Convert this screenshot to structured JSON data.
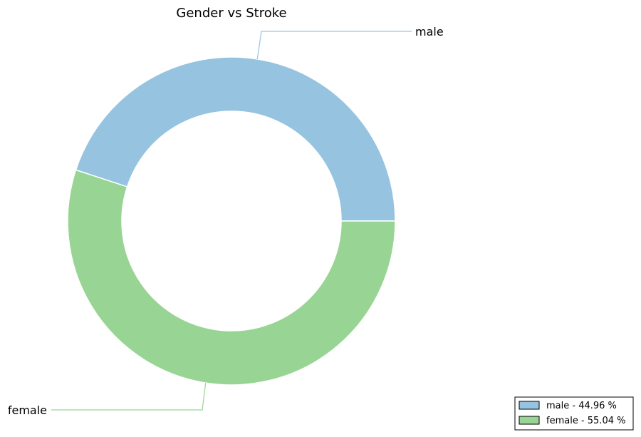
{
  "chart_data": {
    "type": "pie",
    "donut": true,
    "title": "Gender vs Stroke",
    "slices": [
      {
        "label": "male",
        "value": 44.96,
        "color": "#96c4e0"
      },
      {
        "label": "female",
        "value": 55.04,
        "color": "#98d594"
      }
    ],
    "legend": {
      "position": "bottom-right",
      "entries": [
        "male - 44.96 %",
        "female - 55.04 %"
      ]
    }
  }
}
